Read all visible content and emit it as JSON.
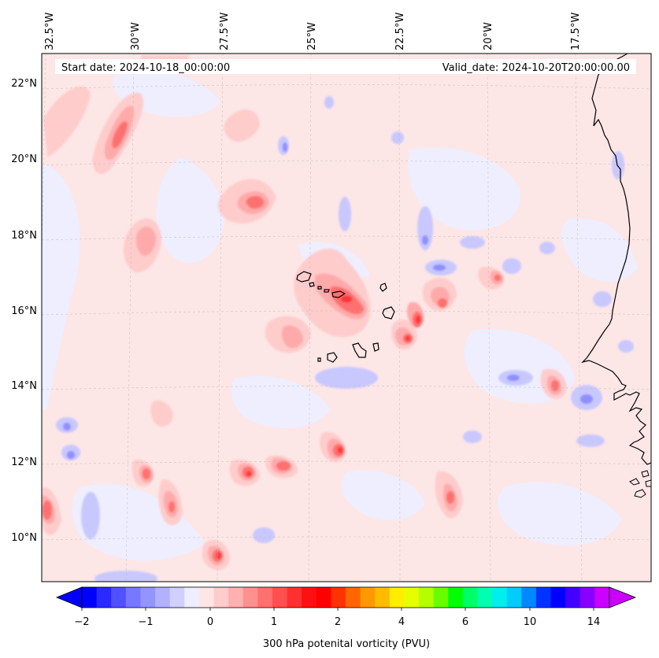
{
  "map": {
    "start_date": "Start date: 2024-10-18_00:00:00",
    "valid_date": "Valid_date: 2024-10-20T20:00:00.00",
    "background": "#fde6e6",
    "coastline_color": "#000000",
    "lon_labels": [
      "32.5°W",
      "30°W",
      "27.5°W",
      "25°W",
      "22.5°W",
      "20°W",
      "17.5°W"
    ],
    "lat_labels": [
      "22°N",
      "20°N",
      "18°N",
      "16°N",
      "14°N",
      "12°N",
      "10°N"
    ]
  },
  "colorbar": {
    "title": "300 hPa potenital vorticity (PVU)",
    "ticks": [
      "−2",
      "−1",
      "0",
      "1",
      "2",
      "4",
      "6",
      "10",
      "14"
    ],
    "colors": [
      "#0000ff",
      "#2a2aff",
      "#5050ff",
      "#7777ff",
      "#9494ff",
      "#b1b1ff",
      "#d0d0ff",
      "#eeeeff",
      "#ffe6e6",
      "#ffcccc",
      "#ffb0b0",
      "#ff9090",
      "#ff7070",
      "#ff5050",
      "#ff3030",
      "#ff1010",
      "#ff0000",
      "#ff3300",
      "#ff6600",
      "#ff9900",
      "#ffbb00",
      "#ffee00",
      "#e6ff00",
      "#b3ff00",
      "#66ff00",
      "#00ff00",
      "#00ff66",
      "#00ffb0",
      "#00eeee",
      "#00ccff",
      "#0088ff",
      "#0033ff",
      "#0000ff",
      "#4400ff",
      "#8800ff",
      "#cc00ff"
    ]
  }
}
